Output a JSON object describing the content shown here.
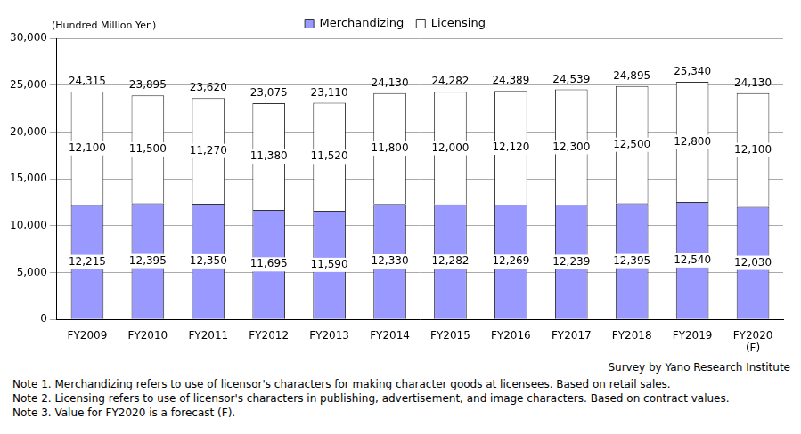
{
  "chart_data": {
    "type": "bar",
    "stacked": true,
    "y_label": "(Hundred Million Yen)",
    "source": "Survey by Yano Research Institute",
    "notes": [
      "Note 1.  Merchandizing refers to use of licensor's characters for making character goods at licensees. Based on retail sales.",
      "Note 2.  Licensing refers to use of licensor's characters in publishing, advertisement, and image characters. Based on contract values.",
      "Note 3.  Value for FY2020 is a forecast (F)."
    ],
    "categories": [
      "FY2009",
      "FY2010",
      "FY2011",
      "FY2012",
      "FY2013",
      "FY2014",
      "FY2015",
      "FY2016",
      "FY2017",
      "FY2018",
      "FY2019",
      "FY2020\n(F)"
    ],
    "series": [
      {
        "name": "Merchandizing",
        "color": "#9999ff",
        "values": [
          12215,
          12395,
          12350,
          11695,
          11590,
          12330,
          12282,
          12269,
          12239,
          12395,
          12540,
          12030
        ],
        "value_labels": [
          "12,215",
          "12,395",
          "12,350",
          "11,695",
          "11,590",
          "12,330",
          "12,282",
          "12,269",
          "12,239",
          "12,395",
          "12,540",
          "12,030"
        ]
      },
      {
        "name": "Licensing",
        "color": "#ffffff",
        "values": [
          12100,
          11500,
          11270,
          11380,
          11520,
          11800,
          12000,
          12120,
          12300,
          12500,
          12800,
          12100
        ],
        "value_labels": [
          "12,100",
          "11,500",
          "11,270",
          "11,380",
          "11,520",
          "11,800",
          "12,000",
          "12,120",
          "12,300",
          "12,500",
          "12,800",
          "12,100"
        ]
      }
    ],
    "totals": {
      "values": [
        24315,
        23895,
        23620,
        23075,
        23110,
        24130,
        24282,
        24389,
        24539,
        24895,
        25340,
        24130
      ],
      "value_labels": [
        "24,315",
        "23,895",
        "23,620",
        "23,075",
        "23,110",
        "24,130",
        "24,282",
        "24,389",
        "24,539",
        "24,895",
        "25,340",
        "24,130"
      ]
    },
    "data_labels": true,
    "ylim": [
      0,
      30000
    ],
    "yticks": [
      0,
      {
        "value": 5000,
        "label": "5,000"
      },
      {
        "value": 10000,
        "label": "10,000"
      },
      {
        "value": 15000,
        "label": "15,000"
      },
      {
        "value": 20000,
        "label": "20,000"
      },
      {
        "value": 25000,
        "label": "25,000"
      },
      {
        "value": 30000,
        "label": "30,000"
      }
    ],
    "grid": true,
    "legend": "top"
  }
}
